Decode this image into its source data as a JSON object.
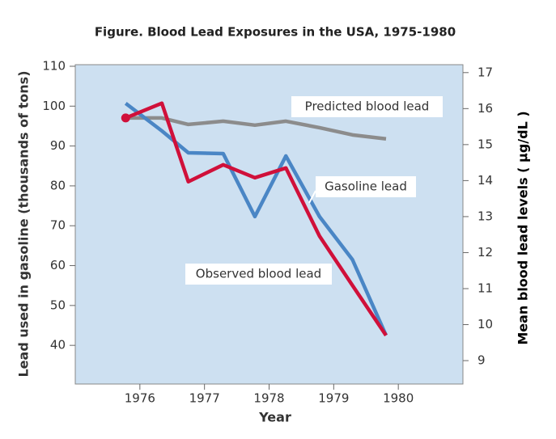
{
  "chart_data": {
    "type": "line",
    "title": "Figure. Blood Lead Exposures in the USA, 1975-1980",
    "x_label": "Year",
    "y_label": "Lead used in gasoline (thousands of tons)",
    "y2_label": "Mean blood lead levels ( µg/dL )",
    "x": [
      1975.78,
      1976.34,
      1976.75,
      1977.29,
      1977.78,
      1978.26,
      1978.78,
      1979.29,
      1979.81
    ],
    "xlim": [
      1975,
      1981
    ],
    "xticks": [
      1976,
      1977,
      1978,
      1979,
      1980
    ],
    "ylim": [
      30.3,
      110.4
    ],
    "yticks": [
      40,
      50,
      60,
      70,
      80,
      90,
      100,
      110
    ],
    "y2lim": [
      8.35,
      17.22
    ],
    "y2ticks": [
      9,
      10,
      11,
      12,
      13,
      14,
      15,
      16,
      17
    ],
    "background": "#cde0f1",
    "series": [
      {
        "name": "Predicted blood lead",
        "color": "#8c8c8c",
        "axis": "y2",
        "values": [
          15.74,
          15.74,
          15.56,
          15.65,
          15.54,
          15.65,
          15.47,
          15.27,
          15.16
        ]
      },
      {
        "name": "Gasoline lead",
        "color": "#4a86c5",
        "values": [
          100.7,
          93.8,
          88.3,
          88.1,
          72.3,
          87.5,
          72.3,
          61.5,
          42.5
        ]
      },
      {
        "name": "Observed blood lead",
        "color": "#d0103a",
        "axis": "y2",
        "values": [
          15.74,
          16.15,
          13.97,
          14.44,
          14.08,
          14.35,
          12.46,
          11.09,
          9.7
        ]
      }
    ]
  }
}
